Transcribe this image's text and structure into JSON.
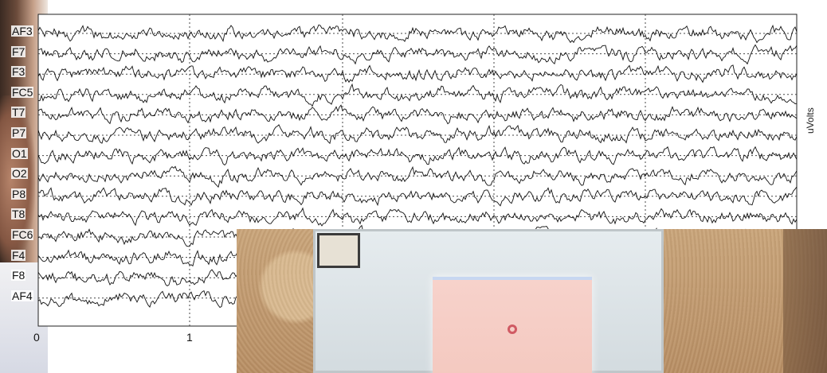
{
  "plot": {
    "channels": [
      "AF3",
      "F7",
      "F3",
      "FC5",
      "T7",
      "P7",
      "O1",
      "O2",
      "P8",
      "T8",
      "FC6",
      "F4",
      "F8",
      "AF4"
    ],
    "x_ticks": [
      "0",
      "1"
    ],
    "y_axis_label": "uVolts"
  },
  "colors": {
    "trace": "#111111",
    "grid": "#444444",
    "projection": "#f7d2cb",
    "target": "#d05a63"
  }
}
